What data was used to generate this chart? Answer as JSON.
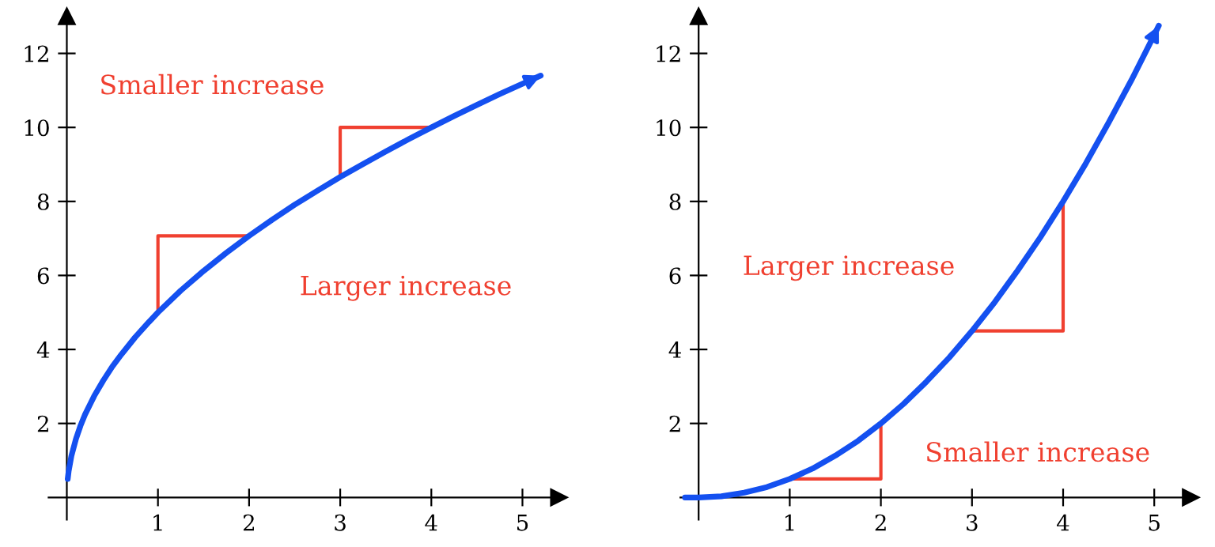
{
  "chart_data": [
    {
      "type": "line",
      "xlim": [
        -0.2,
        5.4
      ],
      "ylim": [
        -0.6,
        13
      ],
      "xticks": [
        1,
        2,
        3,
        4,
        5
      ],
      "yticks": [
        2,
        4,
        6,
        8,
        10,
        12
      ],
      "grid": false,
      "series": [
        {
          "color": "#1450f0",
          "x": [
            0.01,
            0.02,
            0.05,
            0.1,
            0.15,
            0.2,
            0.3,
            0.4,
            0.5,
            0.6,
            0.75,
            0.9,
            1,
            1.25,
            1.5,
            1.75,
            2,
            2.25,
            2.5,
            2.75,
            3,
            3.25,
            3.5,
            3.75,
            4,
            4.25,
            4.5,
            4.75,
            5,
            5.2
          ],
          "values": [
            0.5,
            0.71,
            1.12,
            1.58,
            1.94,
            2.24,
            2.74,
            3.16,
            3.54,
            3.87,
            4.33,
            4.74,
            5,
            5.59,
            6.12,
            6.61,
            7.07,
            7.5,
            7.91,
            8.29,
            8.66,
            9.01,
            9.35,
            9.68,
            10,
            10.31,
            10.61,
            10.9,
            11.18,
            11.4
          ]
        },
        {
          "color": "#f04030",
          "x": [
            1,
            1,
            2
          ],
          "values": [
            5,
            7.07,
            7.07
          ]
        },
        {
          "color": "#f04030",
          "x": [
            3,
            3,
            4
          ],
          "values": [
            8.66,
            10,
            10
          ]
        }
      ],
      "annotations": [
        "Smaller increase",
        "Larger increase"
      ]
    },
    {
      "type": "line",
      "xlim": [
        -0.2,
        5.4
      ],
      "ylim": [
        -0.6,
        13
      ],
      "xticks": [
        1,
        2,
        3,
        4,
        5
      ],
      "yticks": [
        2,
        4,
        6,
        8,
        10,
        12
      ],
      "grid": false,
      "series": [
        {
          "color": "#1450f0",
          "x": [
            -0.15,
            0,
            0.25,
            0.5,
            0.75,
            1,
            1.25,
            1.5,
            1.75,
            2,
            2.25,
            2.5,
            2.75,
            3,
            3.25,
            3.5,
            3.75,
            4,
            4.25,
            4.5,
            4.75,
            5,
            5.05
          ],
          "values": [
            0,
            0,
            0.03,
            0.13,
            0.28,
            0.5,
            0.78,
            1.13,
            1.53,
            2,
            2.53,
            3.13,
            3.78,
            4.5,
            5.28,
            6.13,
            7.03,
            8,
            9.03,
            10.13,
            11.28,
            12.5,
            12.75
          ]
        },
        {
          "color": "#f04030",
          "x": [
            1,
            2,
            2
          ],
          "values": [
            0.5,
            0.5,
            2
          ]
        },
        {
          "color": "#f04030",
          "x": [
            3,
            4,
            4
          ],
          "values": [
            4.5,
            4.5,
            8
          ]
        }
      ],
      "annotations": [
        "Larger increase",
        "Smaller increase"
      ]
    }
  ]
}
